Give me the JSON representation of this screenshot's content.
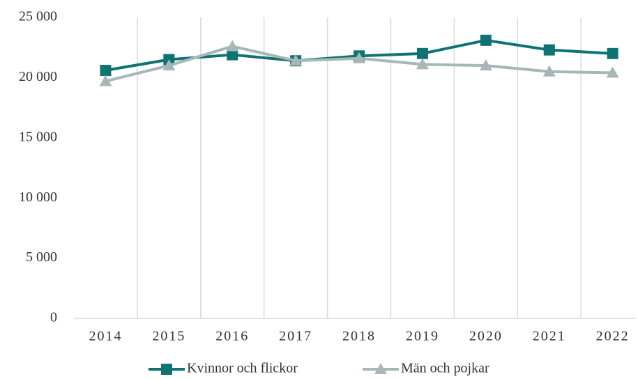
{
  "chart_data": {
    "type": "line",
    "categories": [
      "2014",
      "2015",
      "2016",
      "2017",
      "2018",
      "2019",
      "2020",
      "2021",
      "2022"
    ],
    "series": [
      {
        "name": "Kvinnor och flickor",
        "color": "#0e7372",
        "marker": "square",
        "values": [
          20600,
          21500,
          21900,
          21400,
          21800,
          22000,
          23100,
          22300,
          22000
        ]
      },
      {
        "name": "Män och pojkar",
        "color": "#a5b7b7",
        "marker": "triangle",
        "values": [
          19700,
          21000,
          22600,
          21400,
          21600,
          21100,
          21000,
          20500,
          20400
        ]
      }
    ],
    "ylim": [
      0,
      25000
    ],
    "yticks": [
      0,
      {
        "value": 5000,
        "label": "5 000"
      },
      {
        "value": 10000,
        "label": "10 000"
      },
      {
        "value": 15000,
        "label": "15 000"
      },
      {
        "value": 20000,
        "label": "20 000"
      },
      {
        "value": 25000,
        "label": "25 000"
      }
    ],
    "legend": "bottom"
  }
}
